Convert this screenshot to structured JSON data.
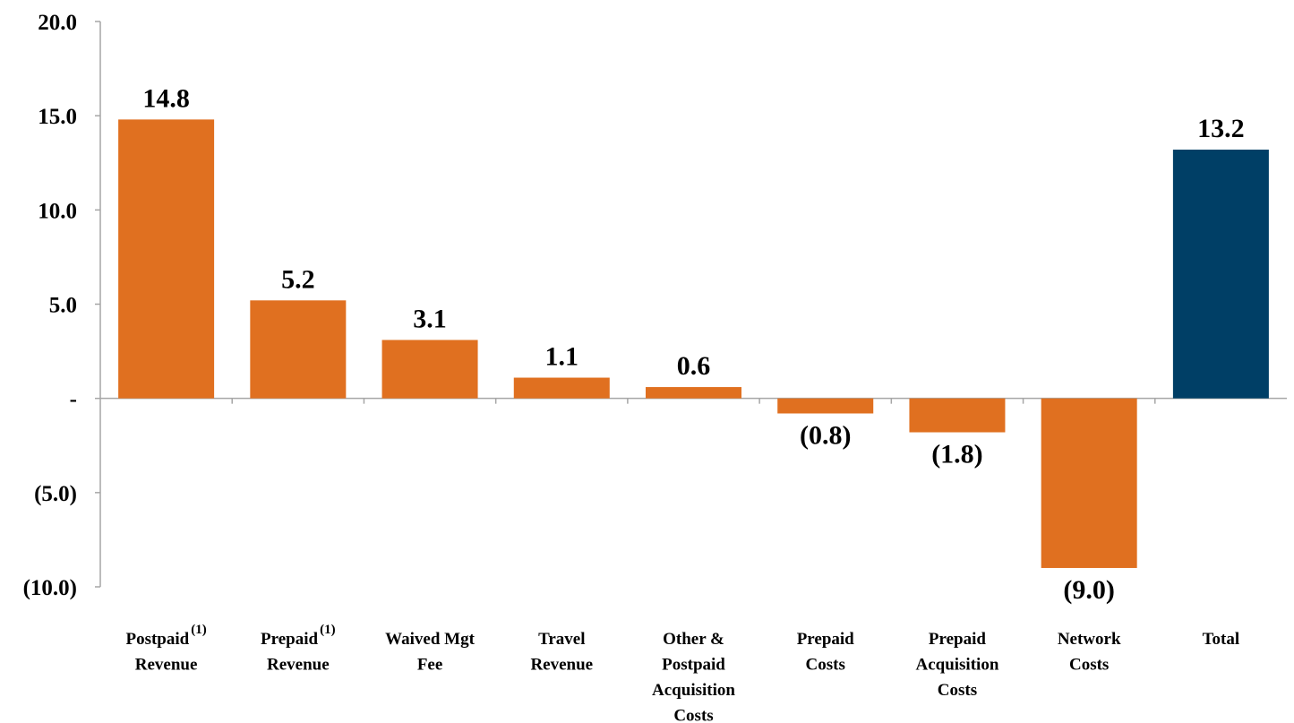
{
  "chart_data": {
    "type": "bar",
    "categories": [
      {
        "lines": [
          "Postpaid",
          "Revenue"
        ],
        "footnote": "(1)"
      },
      {
        "lines": [
          "Prepaid",
          "Revenue"
        ],
        "footnote": "(1)"
      },
      {
        "lines": [
          "Waived Mgt",
          "Fee"
        ],
        "footnote": ""
      },
      {
        "lines": [
          "Travel",
          "Revenue"
        ],
        "footnote": ""
      },
      {
        "lines": [
          "Other &",
          "Postpaid",
          "Acquisition",
          "Costs"
        ],
        "footnote": ""
      },
      {
        "lines": [
          "Prepaid",
          "Costs"
        ],
        "footnote": ""
      },
      {
        "lines": [
          "Prepaid",
          "Acquisition",
          "Costs"
        ],
        "footnote": ""
      },
      {
        "lines": [
          "Network",
          "Costs"
        ],
        "footnote": ""
      },
      {
        "lines": [
          "Total"
        ],
        "footnote": ""
      }
    ],
    "values": [
      14.8,
      5.2,
      3.1,
      1.1,
      0.6,
      -0.8,
      -1.8,
      -9.0,
      13.2
    ],
    "data_labels": [
      "14.8",
      "5.2",
      "3.1",
      "1.1",
      "0.6",
      "(0.8)",
      "(1.8)",
      "(9.0)",
      "13.2"
    ],
    "bar_colors": [
      "#E07020",
      "#E07020",
      "#E07020",
      "#E07020",
      "#E07020",
      "#E07020",
      "#E07020",
      "#E07020",
      "#003F66"
    ],
    "ylim": [
      -10,
      20
    ],
    "yticks": [
      20,
      15,
      10,
      5,
      0,
      -5,
      -10
    ],
    "ytick_labels": [
      "20.0",
      "15.0",
      "10.0",
      "5.0",
      "-",
      "(5.0)",
      "(10.0)"
    ],
    "grid": false,
    "title": "",
    "xlabel": "",
    "ylabel": ""
  }
}
